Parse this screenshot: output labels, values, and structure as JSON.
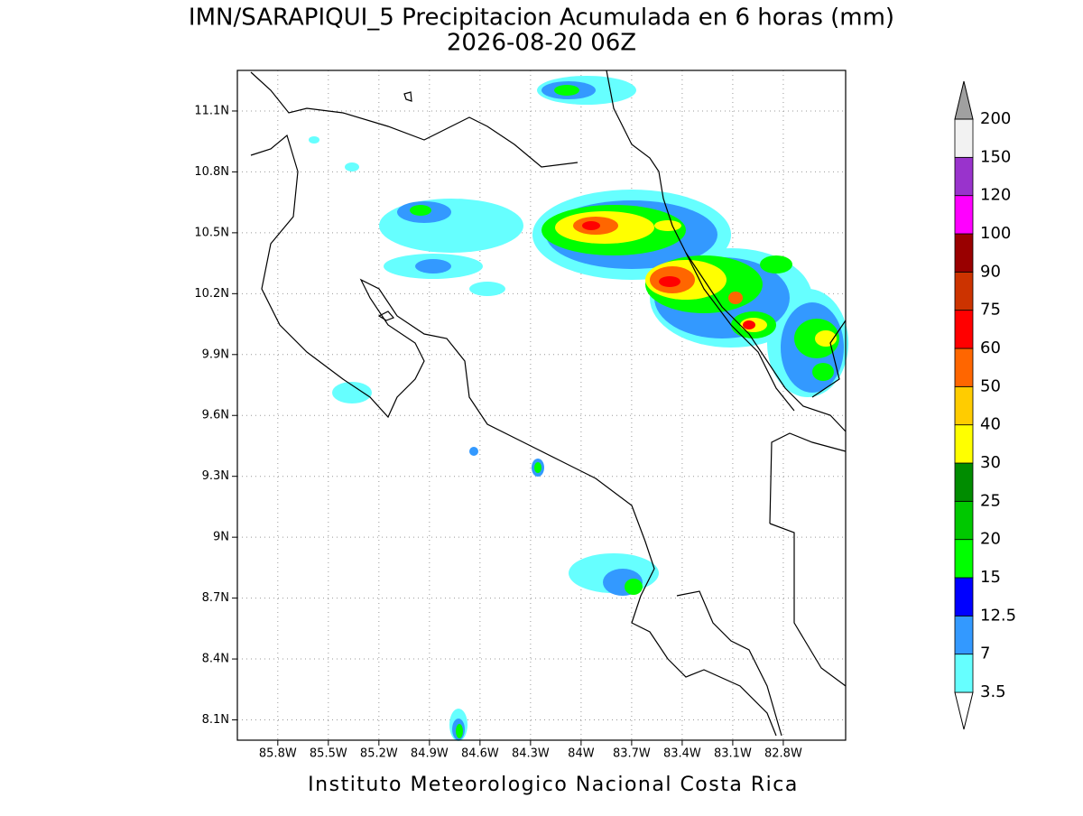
{
  "title": "IMN/SARAPIQUI_5 Precipitacion Acumulada en 6 horas (mm)",
  "subtitle": "2026-08-20 06Z",
  "map": {
    "xlim": [
      -86.04,
      -82.43
    ],
    "ylim": [
      8.0,
      11.3
    ],
    "lon_ticks": [
      {
        "value": -85.8,
        "label": "85.8W"
      },
      {
        "value": -85.5,
        "label": "85.5W"
      },
      {
        "value": -85.2,
        "label": "85.2W"
      },
      {
        "value": -84.9,
        "label": "84.9W"
      },
      {
        "value": -84.6,
        "label": "84.6W"
      },
      {
        "value": -84.3,
        "label": "84.3W"
      },
      {
        "value": -84,
        "label": "84W"
      },
      {
        "value": -83.7,
        "label": "83.7W"
      },
      {
        "value": -83.4,
        "label": "83.4W"
      },
      {
        "value": -83.1,
        "label": "83.1W"
      },
      {
        "value": -82.8,
        "label": "82.8W"
      }
    ],
    "lat_ticks": [
      {
        "value": 8.1,
        "label": "8.1N"
      },
      {
        "value": 8.4,
        "label": "8.4N"
      },
      {
        "value": 8.7,
        "label": "8.7N"
      },
      {
        "value": 9,
        "label": "9N"
      },
      {
        "value": 9.3,
        "label": "9.3N"
      },
      {
        "value": 9.6,
        "label": "9.6N"
      },
      {
        "value": 9.9,
        "label": "9.9N"
      },
      {
        "value": 10.2,
        "label": "10.2N"
      },
      {
        "value": 10.5,
        "label": "10.5N"
      },
      {
        "value": 10.8,
        "label": "10.8N"
      },
      {
        "value": 11.1,
        "label": "11.1N"
      }
    ],
    "grid": true
  },
  "colorbar": {
    "levels": [
      3.5,
      7,
      12.5,
      15,
      20,
      25,
      30,
      40,
      50,
      60,
      75,
      90,
      100,
      120,
      150,
      200
    ],
    "colors": [
      "#ffffff",
      "#66ffff",
      "#3399ff",
      "#0000ff",
      "#00ff00",
      "#00c800",
      "#008c00",
      "#ffff00",
      "#ffcc00",
      "#ff6600",
      "#ff0000",
      "#cc3300",
      "#990000",
      "#ff00ff",
      "#9933cc",
      "#f2f2f2",
      "#a0a0a0"
    ]
  },
  "credit": "Instituto Meteorologico Nacional Costa Rica"
}
